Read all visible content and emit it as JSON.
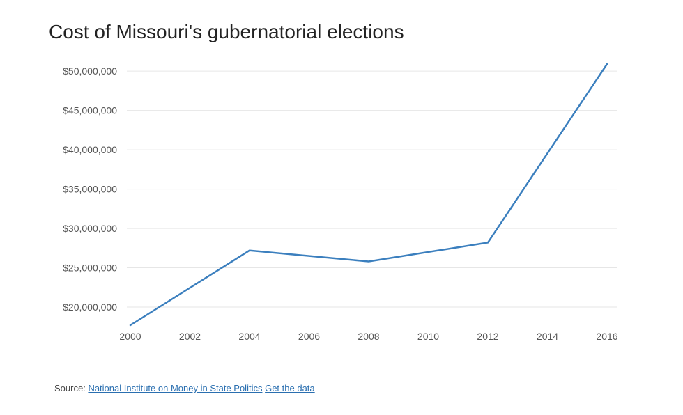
{
  "chart_data": {
    "type": "line",
    "title": "Cost of Missouri's gubernatorial elections",
    "xlabel": "",
    "ylabel": "",
    "x": [
      2000,
      2004,
      2008,
      2012,
      2016
    ],
    "series": [
      {
        "values": [
          17700000,
          27200000,
          25800000,
          28200000,
          50900000
        ]
      }
    ],
    "xlim": [
      2000,
      2016
    ],
    "ylim": [
      17700000,
      50900000
    ],
    "x_ticks": [
      2000,
      2002,
      2004,
      2006,
      2008,
      2010,
      2012,
      2014,
      2016
    ],
    "y_ticks": [
      20000000,
      25000000,
      30000000,
      35000000,
      40000000,
      45000000,
      50000000
    ],
    "y_tick_labels": [
      "$20,000,000",
      "$25,000,000",
      "$30,000,000",
      "$35,000,000",
      "$40,000,000",
      "$45,000,000",
      "$50,000,000"
    ],
    "grid": true,
    "line_color": "#3b7fbe"
  },
  "source": {
    "label": "Source:",
    "link_label": "National Institute on Money in State Politics",
    "data_link_label": "Get the data"
  }
}
